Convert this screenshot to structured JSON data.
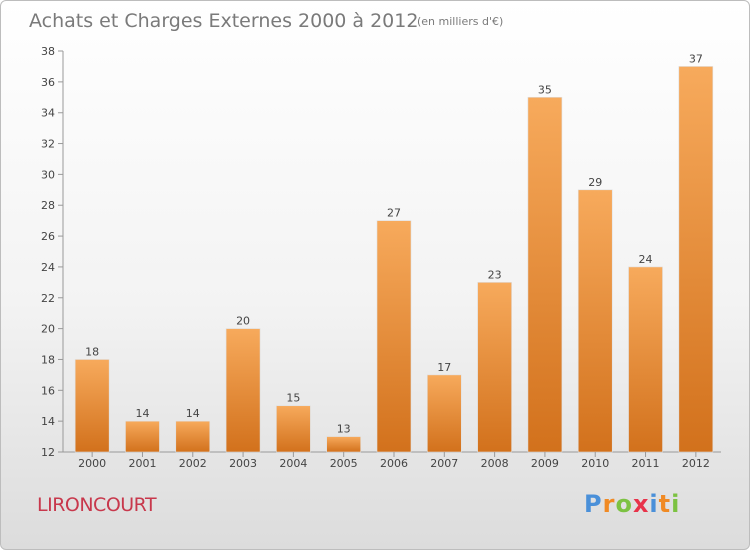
{
  "colors": {
    "bar_light": "#f7aa5c",
    "bar_dark": "#d2711c",
    "axis": "#999999",
    "grid_text": "#444444",
    "name_color": "#c8384c"
  },
  "commune": "LIRONCOURT",
  "brand": {
    "letters": [
      {
        "ch": "P",
        "color": "#4a90d9"
      },
      {
        "ch": "r",
        "color": "#f08a24"
      },
      {
        "ch": "o",
        "color": "#7cc242"
      },
      {
        "ch": "x",
        "color": "#e8334a"
      },
      {
        "ch": "i",
        "color": "#4a90d9"
      },
      {
        "ch": "t",
        "color": "#f08a24"
      },
      {
        "ch": "i",
        "color": "#7cc242"
      }
    ]
  },
  "chart_data": {
    "type": "bar",
    "title": "Achats et Charges Externes 2000 à 2012",
    "subtitle": "(en milliers d'€)",
    "xlabel": "",
    "ylabel": "",
    "categories": [
      "2000",
      "2001",
      "2002",
      "2003",
      "2004",
      "2005",
      "2006",
      "2007",
      "2008",
      "2009",
      "2010",
      "2011",
      "2012"
    ],
    "values": [
      18,
      14,
      14,
      20,
      15,
      13,
      27,
      17,
      23,
      35,
      29,
      24,
      37
    ],
    "ylim": [
      12,
      38
    ],
    "yticks": [
      12,
      14,
      16,
      18,
      20,
      22,
      24,
      26,
      28,
      30,
      32,
      34,
      36,
      38
    ],
    "legend": "none",
    "grid": false
  }
}
